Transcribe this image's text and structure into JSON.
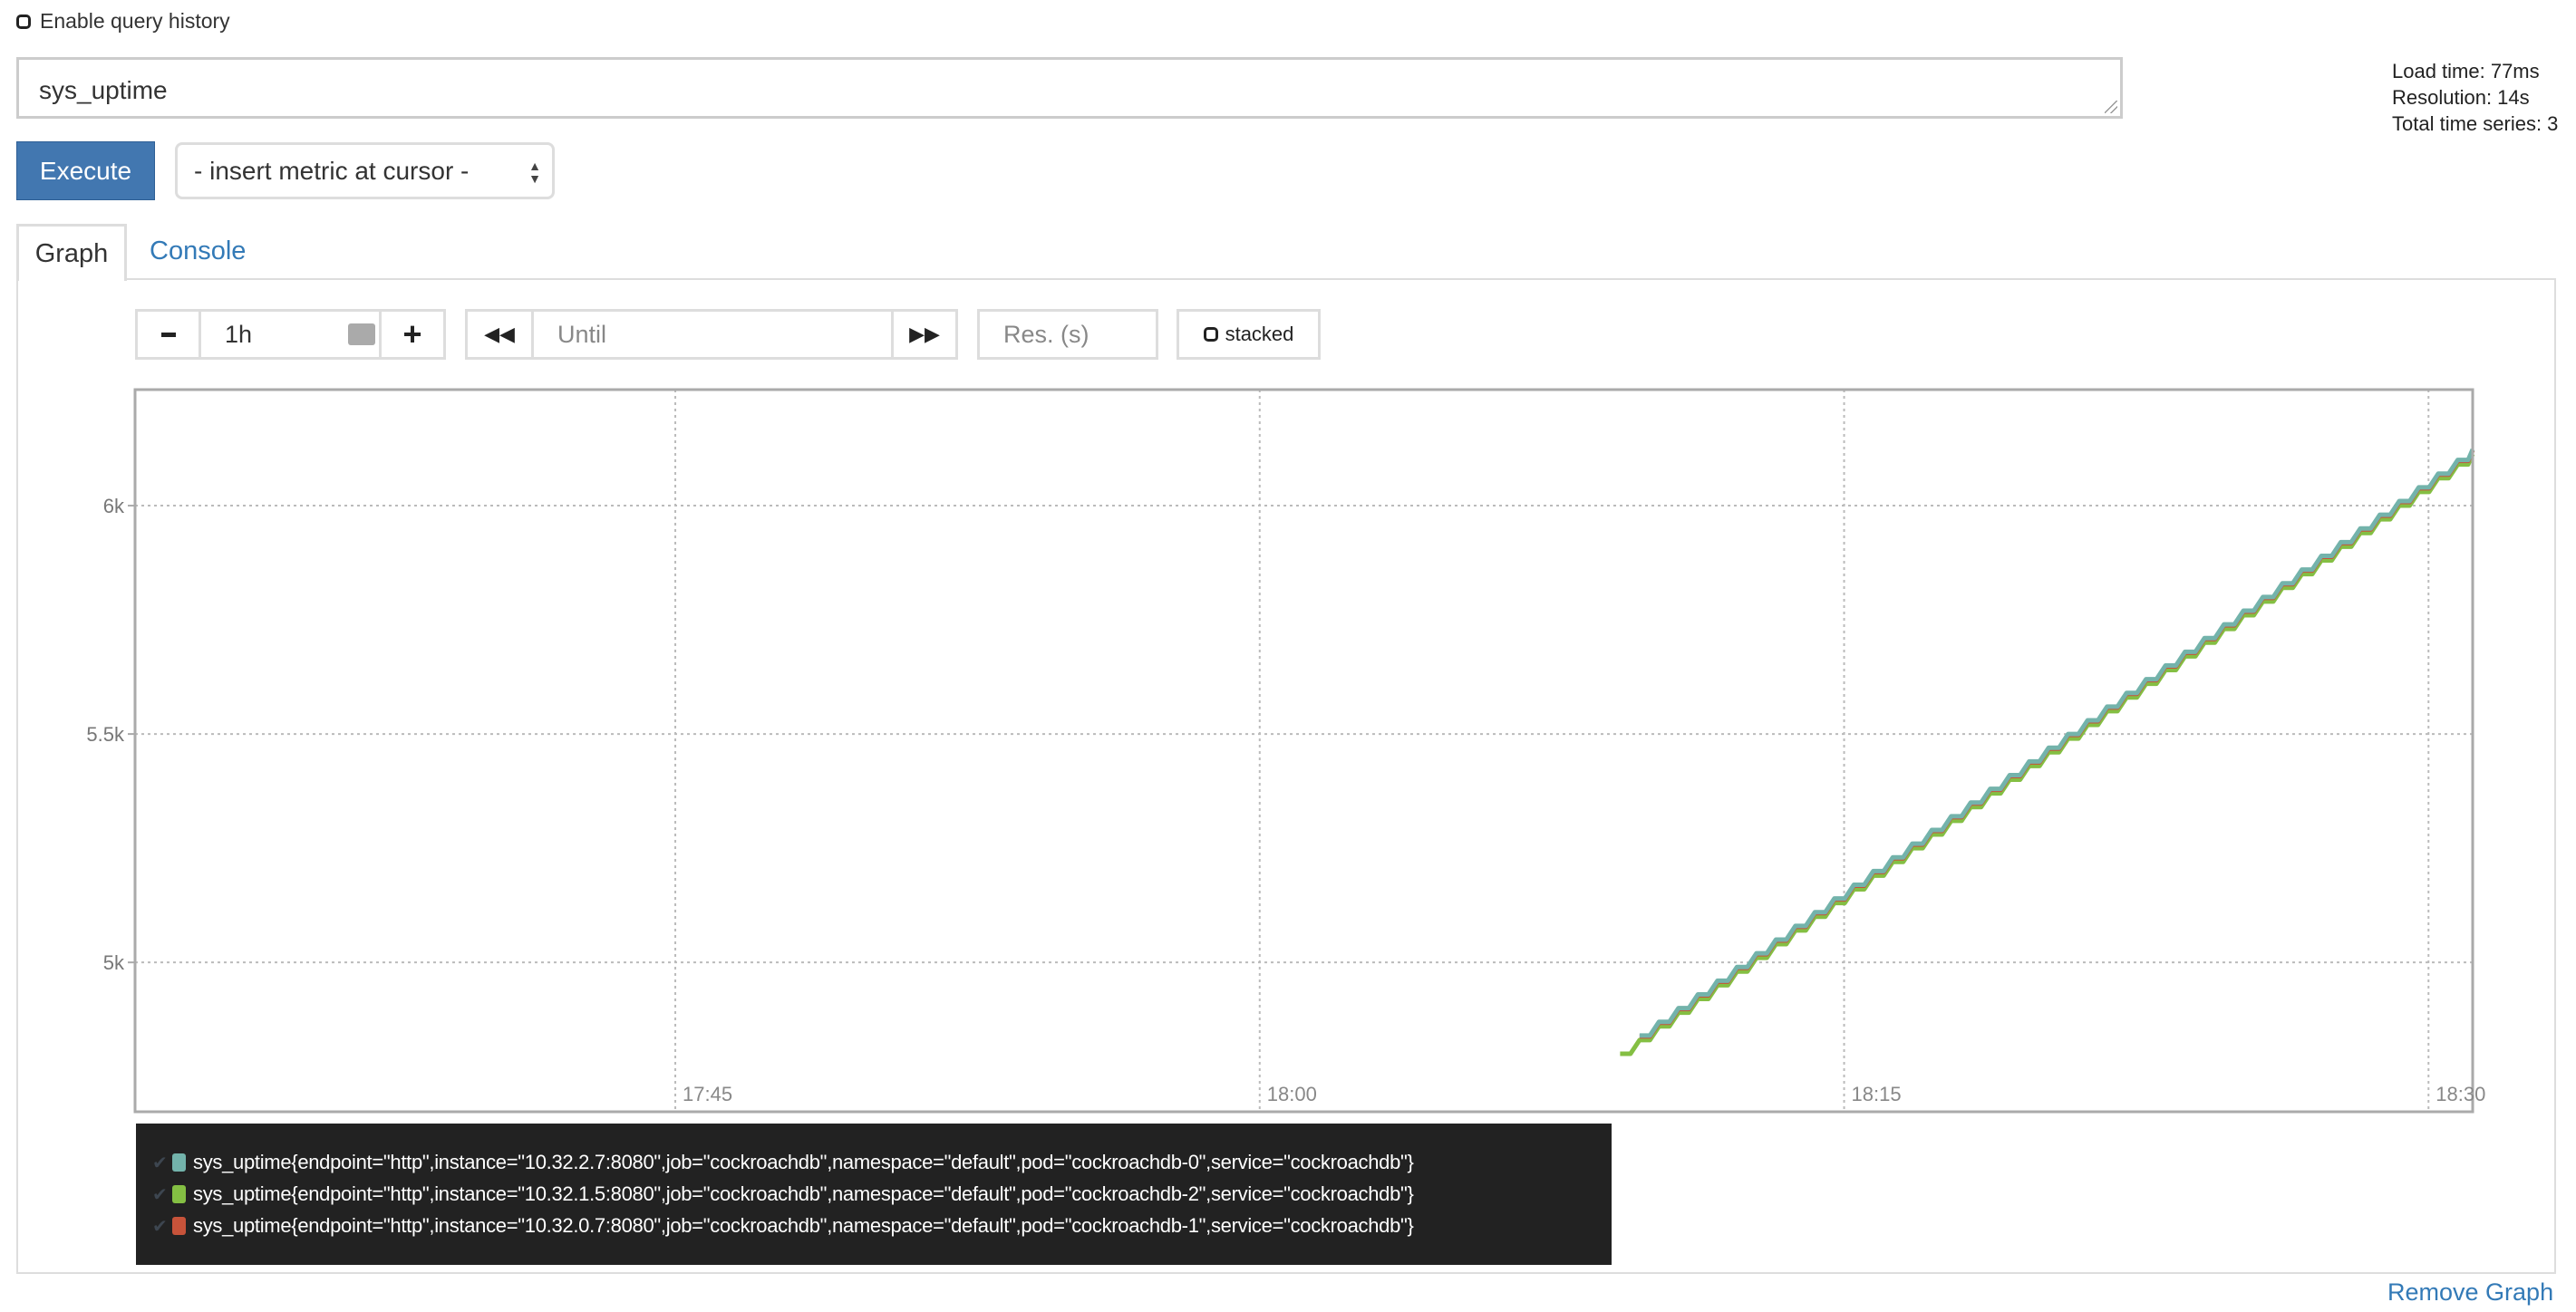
{
  "query_history": {
    "label": "Enable query history",
    "checked": false
  },
  "query": {
    "value": "sys_uptime"
  },
  "stats": {
    "load_time": "Load time: 77ms",
    "resolution": "Resolution: 14s",
    "total_series": "Total time series: 3"
  },
  "execute_label": "Execute",
  "metric_select": {
    "value": "- insert metric at cursor -"
  },
  "tabs": [
    {
      "label": "Graph",
      "active": true
    },
    {
      "label": "Console",
      "active": false
    }
  ],
  "controls": {
    "range_value": "1h",
    "until_placeholder": "Until",
    "res_placeholder": "Res. (s)",
    "stacked_label": "stacked",
    "icons": [
      "minus-icon",
      "calendar-icon",
      "plus-icon",
      "backward-icon",
      "forward-icon"
    ]
  },
  "legend": [
    {
      "label": "sys_uptime{endpoint=\"http\",instance=\"10.32.2.7:8080\",job=\"cockroachdb\",namespace=\"default\",pod=\"cockroachdb-0\",service=\"cockroachdb\"}",
      "color": "#73b3ab"
    },
    {
      "label": "sys_uptime{endpoint=\"http\",instance=\"10.32.1.5:8080\",job=\"cockroachdb\",namespace=\"default\",pod=\"cockroachdb-2\",service=\"cockroachdb\"}",
      "color": "#84bf43"
    },
    {
      "label": "sys_uptime{endpoint=\"http\",instance=\"10.32.0.7:8080\",job=\"cockroachdb\",namespace=\"default\",pod=\"cockroachdb-1\",service=\"cockroachdb\"}",
      "color": "#c7533a"
    }
  ],
  "remove_graph_label": "Remove Graph",
  "chart_data": {
    "type": "line",
    "grid": true,
    "xlim": [
      "17:31:08",
      "18:31:08"
    ],
    "ylim": [
      4673,
      6254
    ],
    "x_ticks": [
      "17:45",
      "18:00",
      "18:15",
      "18:30"
    ],
    "y_ticks": [
      {
        "value": 5000,
        "label": "5k"
      },
      {
        "value": 5500,
        "label": "5.5k"
      },
      {
        "value": 6000,
        "label": "6k"
      }
    ],
    "x": [
      "18:09:15",
      "18:09:45",
      "18:10:15",
      "18:10:45",
      "18:11:15",
      "18:11:45",
      "18:12:15",
      "18:12:45",
      "18:13:15",
      "18:13:45",
      "18:14:15",
      "18:14:45",
      "18:15:15",
      "18:15:45",
      "18:16:15",
      "18:16:45",
      "18:17:15",
      "18:17:45",
      "18:18:15",
      "18:18:45",
      "18:19:15",
      "18:19:45",
      "18:20:15",
      "18:20:45",
      "18:21:15",
      "18:21:45",
      "18:22:15",
      "18:22:45",
      "18:23:15",
      "18:23:45",
      "18:24:15",
      "18:24:45",
      "18:25:15",
      "18:25:45",
      "18:26:15",
      "18:26:45",
      "18:27:15",
      "18:27:45",
      "18:28:15",
      "18:28:45",
      "18:29:15",
      "18:29:45",
      "18:30:15",
      "18:30:45"
    ],
    "series": [
      {
        "name": "cockroachdb-2",
        "color": "#84bf43",
        "values": [
          4800,
          4830,
          4860,
          4890,
          4920,
          4950,
          4980,
          5010,
          5040,
          5070,
          5100,
          5130,
          5160,
          5190,
          5220,
          5250,
          5280,
          5310,
          5340,
          5370,
          5400,
          5430,
          5460,
          5490,
          5520,
          5550,
          5580,
          5610,
          5640,
          5670,
          5700,
          5730,
          5760,
          5790,
          5820,
          5850,
          5880,
          5910,
          5940,
          5970,
          6000,
          6030,
          6060,
          6090
        ]
      },
      {
        "name": "cockroachdb-1",
        "color": "#c7533a",
        "values": [
          null,
          4838,
          4868,
          4898,
          4928,
          4958,
          4988,
          5018,
          5048,
          5078,
          5108,
          5138,
          5168,
          5198,
          5228,
          5258,
          5288,
          5318,
          5348,
          5378,
          5408,
          5438,
          5468,
          5498,
          5528,
          5558,
          5588,
          5618,
          5648,
          5678,
          5708,
          5738,
          5768,
          5798,
          5828,
          5858,
          5888,
          5918,
          5948,
          5978,
          6008,
          6038,
          6068,
          6098
        ]
      },
      {
        "name": "cockroachdb-0",
        "color": "#73b3ab",
        "values": [
          null,
          4840,
          4870,
          4900,
          4930,
          4960,
          4990,
          5020,
          5050,
          5080,
          5110,
          5140,
          5170,
          5200,
          5230,
          5260,
          5290,
          5320,
          5350,
          5380,
          5410,
          5440,
          5470,
          5500,
          5530,
          5560,
          5590,
          5620,
          5650,
          5680,
          5710,
          5740,
          5770,
          5800,
          5830,
          5860,
          5890,
          5920,
          5950,
          5980,
          6010,
          6040,
          6070,
          6100
        ]
      }
    ]
  }
}
